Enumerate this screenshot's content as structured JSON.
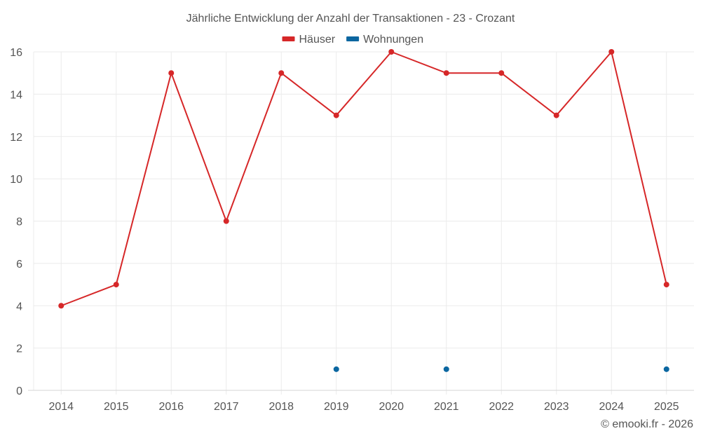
{
  "chart": {
    "title": "Jährliche Entwicklung der Anzahl der Transaktionen - 23 - Crozant",
    "credit": "© emooki.fr - 2026",
    "legend": [
      {
        "label": "Häuser",
        "color": "#d62728"
      },
      {
        "label": "Wohnungen",
        "color": "#0b66a0"
      }
    ]
  },
  "chart_data": {
    "type": "line",
    "title": "Jährliche Entwicklung der Anzahl der Transaktionen - 23 - Crozant",
    "xlabel": "",
    "ylabel": "",
    "categories": [
      "2014",
      "2015",
      "2016",
      "2017",
      "2018",
      "2019",
      "2020",
      "2021",
      "2022",
      "2023",
      "2024",
      "2025"
    ],
    "series": [
      {
        "name": "Häuser",
        "color": "#d62728",
        "values": [
          4,
          5,
          15,
          8,
          15,
          13,
          16,
          15,
          15,
          13,
          16,
          5
        ]
      },
      {
        "name": "Wohnungen",
        "color": "#0b66a0",
        "values": [
          null,
          null,
          null,
          null,
          null,
          1,
          null,
          1,
          null,
          null,
          null,
          1
        ]
      }
    ],
    "ylim": [
      0,
      16
    ],
    "yticks": [
      0,
      2,
      4,
      6,
      8,
      10,
      12,
      14,
      16
    ],
    "grid": true,
    "legend_position": "top-center"
  }
}
